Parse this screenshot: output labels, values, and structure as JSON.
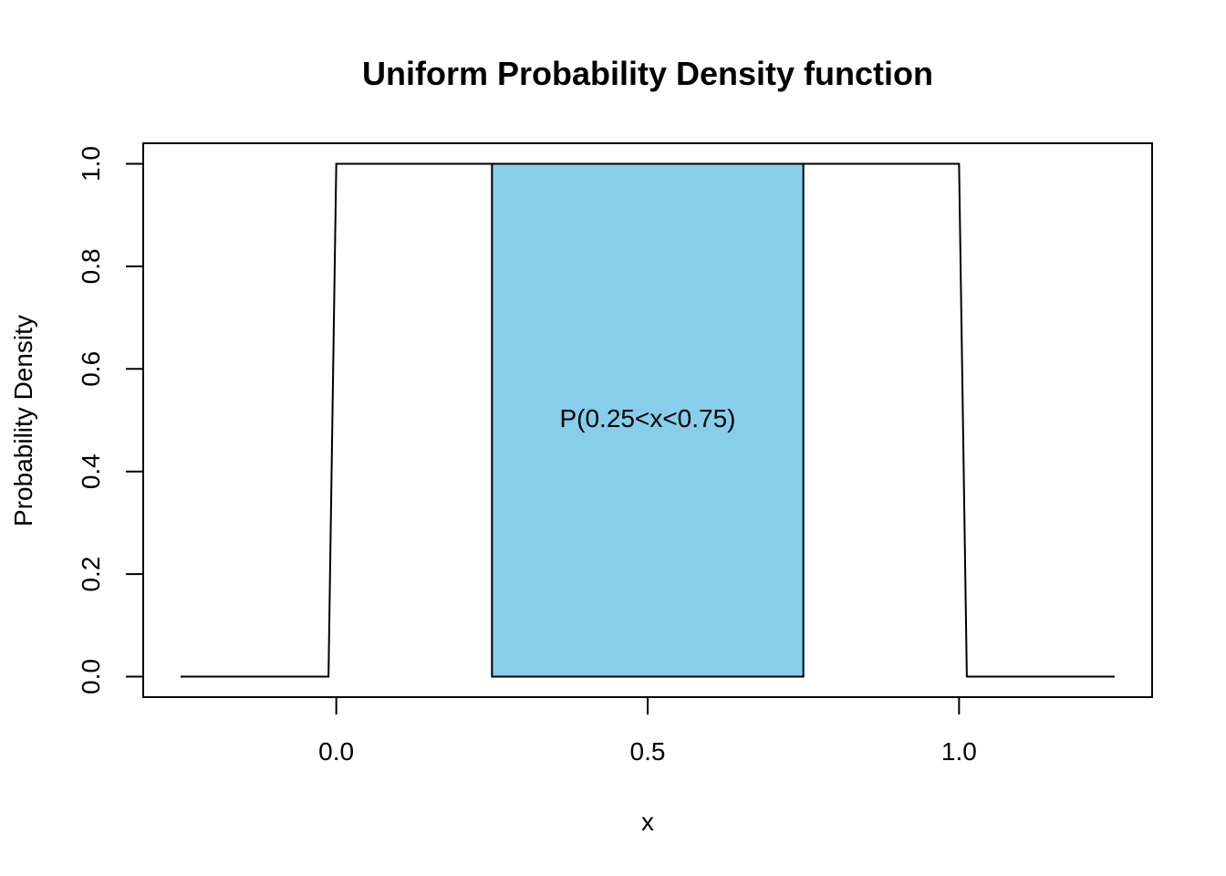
{
  "chart_data": {
    "type": "line",
    "title": "Uniform Probability Density function",
    "xlabel": "x",
    "ylabel": "Probability Density",
    "xlim": [
      -0.31,
      1.31
    ],
    "ylim": [
      -0.04,
      1.04
    ],
    "x_ticks": [
      0.0,
      0.5,
      1.0
    ],
    "x_tick_labels": [
      "0.0",
      "0.5",
      "1.0"
    ],
    "y_ticks": [
      0.0,
      0.2,
      0.4,
      0.6,
      0.8,
      1.0
    ],
    "y_tick_labels": [
      "0.0",
      "0.2",
      "0.4",
      "0.6",
      "0.8",
      "1.0"
    ],
    "grid": false,
    "series": [
      {
        "x": [
          -0.25,
          -0.0125,
          0.0,
          1.0,
          1.0125,
          1.25
        ],
        "y": [
          0,
          0,
          1,
          1,
          0,
          0
        ],
        "color": "#000000"
      }
    ],
    "shaded_region": {
      "x_from": 0.25,
      "x_to": 0.75,
      "y_from": 0,
      "y_to": 1,
      "fill": "#87CEEB",
      "stroke": "#000000"
    },
    "annotation": {
      "text": "P(0.25<x<0.75)",
      "x": 0.5,
      "y": 0.5
    }
  }
}
